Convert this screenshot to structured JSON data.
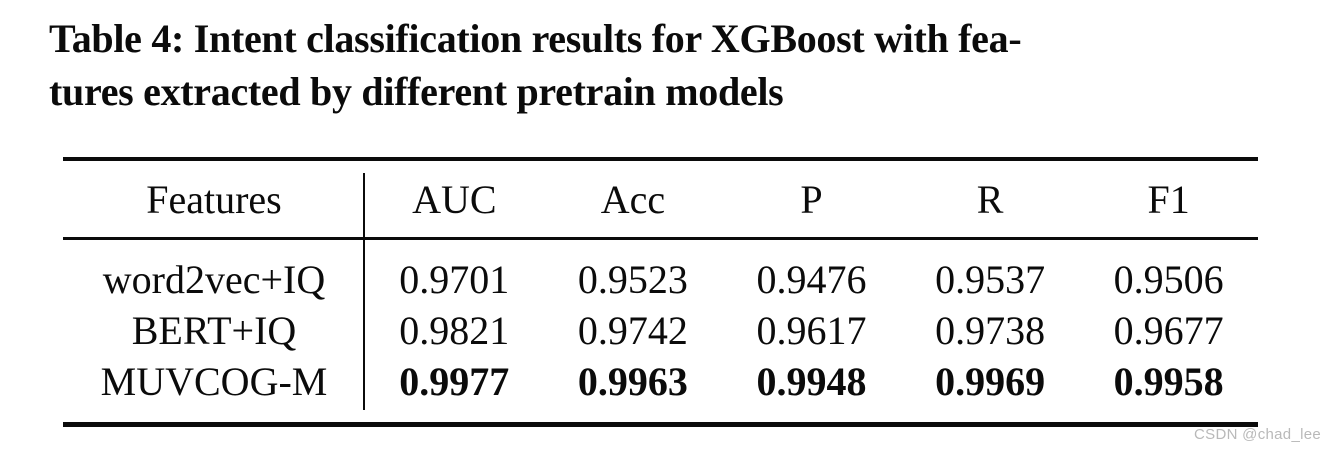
{
  "caption": {
    "line1": "Table 4: Intent classification results for XGBoost with fea-",
    "line2": "tures extracted by different pretrain models"
  },
  "table": {
    "header": {
      "features": "Features",
      "metrics": [
        "AUC",
        "Acc",
        "P",
        "R",
        "F1"
      ]
    },
    "rows": [
      {
        "feature": "word2vec+IQ",
        "auc": "0.9701",
        "acc": "0.9523",
        "p": "0.9476",
        "r": "0.9537",
        "f1": "0.9506"
      },
      {
        "feature": "BERT+IQ",
        "auc": "0.9821",
        "acc": "0.9742",
        "p": "0.9617",
        "r": "0.9738",
        "f1": "0.9677"
      },
      {
        "feature": "MUVCOG-M",
        "auc": "0.9977",
        "acc": "0.9963",
        "p": "0.9948",
        "r": "0.9969",
        "f1": "0.9958"
      }
    ]
  },
  "watermark": "CSDN @chad_lee",
  "colors": {
    "text": "#0b0b0b",
    "rule": "#0b0b0b",
    "background": "#ffffff",
    "watermark": "#b9b9b9"
  }
}
